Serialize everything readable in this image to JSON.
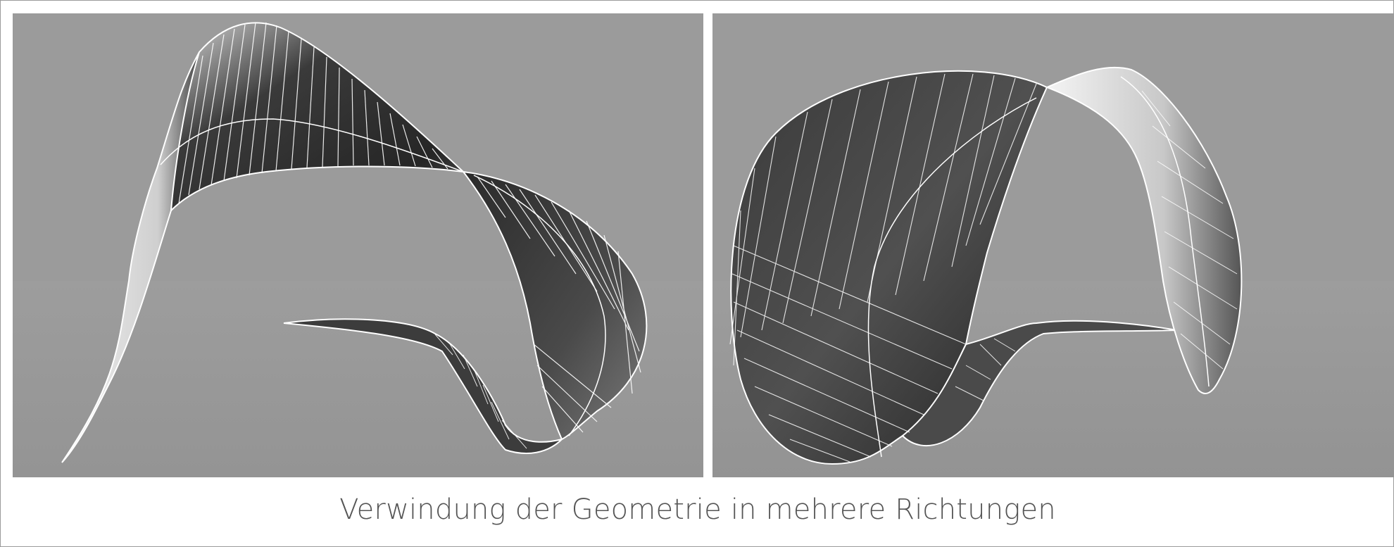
{
  "figure": {
    "caption": "Verwindung der Geometrie in mehrere Richtungen"
  },
  "panels": [
    {
      "view": "left",
      "content": "twisted-ruled-surface-render"
    },
    {
      "view": "right",
      "content": "twisted-ruled-surface-render"
    }
  ],
  "colors": {
    "viewport_background": "#9b9b9b",
    "surface_dark": "#2b2b2b",
    "surface_light": "#e8e8e8",
    "wire": "#ffffff",
    "caption_text": "#555555"
  }
}
